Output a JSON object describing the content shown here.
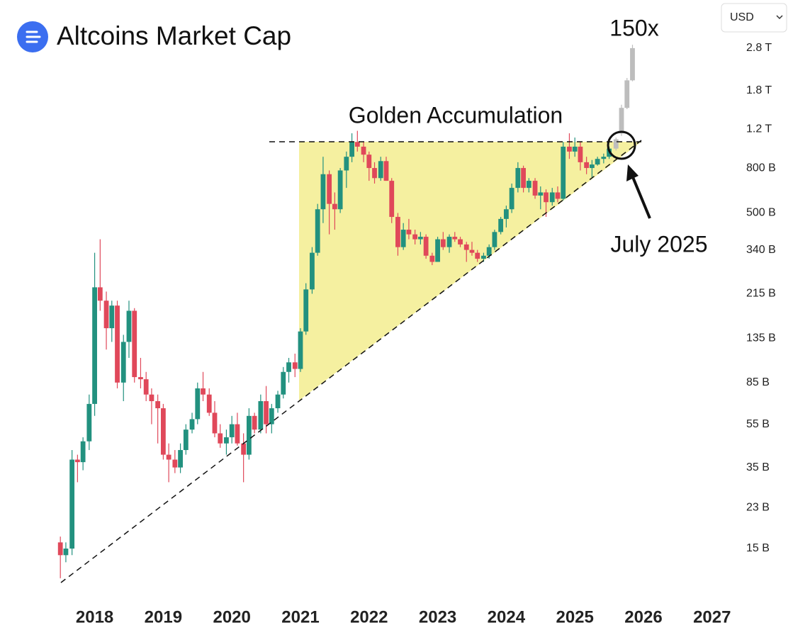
{
  "header": {
    "title": "Altcoins Market Cap",
    "currency": "USD"
  },
  "chart_data": {
    "type": "candlestick",
    "log_scale": true,
    "annotations": {
      "pattern": "Golden Accumulation",
      "date": "July 2025",
      "target": "150x"
    },
    "ylim": [
      9.2,
      4630
    ],
    "xlim": [
      2016.62,
      2028.18
    ],
    "yticks": [
      {
        "value": 15,
        "label": "15 B"
      },
      {
        "value": 23,
        "label": "23 B"
      },
      {
        "value": 35,
        "label": "35 B"
      },
      {
        "value": 55,
        "label": "55 B"
      },
      {
        "value": 85,
        "label": "85 B"
      },
      {
        "value": 135,
        "label": "135 B"
      },
      {
        "value": 215,
        "label": "215 B"
      },
      {
        "value": 340,
        "label": "340 B"
      },
      {
        "value": 500,
        "label": "500 B"
      },
      {
        "value": 800,
        "label": "800 B"
      },
      {
        "value": 1200,
        "label": "1.2 T"
      },
      {
        "value": 1800,
        "label": "1.8 T"
      },
      {
        "value": 2800,
        "label": "2.8 T"
      }
    ],
    "xticks": [
      2018,
      2019,
      2020,
      2021,
      2022,
      2023,
      2024,
      2025,
      2026,
      2027
    ],
    "up_color": "#22917f",
    "down_color": "#e0485a",
    "projection_color": "#bdbdbd",
    "x": [
      2017.5,
      2017.58,
      2017.67,
      2017.75,
      2017.83,
      2017.92,
      2018,
      2018.08,
      2018.17,
      2018.25,
      2018.33,
      2018.42,
      2018.5,
      2018.58,
      2018.67,
      2018.75,
      2018.83,
      2018.92,
      2019,
      2019.08,
      2019.17,
      2019.25,
      2019.33,
      2019.42,
      2019.5,
      2019.58,
      2019.67,
      2019.75,
      2019.83,
      2019.92,
      2020,
      2020.08,
      2020.17,
      2020.25,
      2020.33,
      2020.42,
      2020.5,
      2020.58,
      2020.67,
      2020.75,
      2020.83,
      2020.92,
      2021,
      2021.08,
      2021.17,
      2021.25,
      2021.33,
      2021.42,
      2021.5,
      2021.58,
      2021.67,
      2021.75,
      2021.83,
      2021.92,
      2022,
      2022.08,
      2022.17,
      2022.25,
      2022.33,
      2022.42,
      2022.5,
      2022.58,
      2022.67,
      2022.75,
      2022.83,
      2022.92,
      2023,
      2023.08,
      2023.17,
      2023.25,
      2023.33,
      2023.42,
      2023.5,
      2023.58,
      2023.67,
      2023.75,
      2023.83,
      2023.92,
      2024,
      2024.08,
      2024.17,
      2024.25,
      2024.33,
      2024.42,
      2024.5,
      2024.58,
      2024.67,
      2024.75,
      2024.83,
      2024.92,
      2025,
      2025.08,
      2025.17,
      2025.25,
      2025.33,
      2025.42,
      2025.5
    ],
    "open": [
      16,
      14,
      15,
      38,
      37,
      46,
      68,
      230,
      200,
      150,
      190,
      85,
      130,
      180,
      90,
      88,
      75,
      70,
      65,
      40,
      38,
      35,
      42,
      52,
      58,
      80,
      75,
      62,
      50,
      45,
      48,
      55,
      45,
      40,
      60,
      52,
      70,
      55,
      65,
      75,
      95,
      105,
      98,
      145,
      225,
      330,
      520,
      750,
      550,
      520,
      780,
      900,
      1050,
      1000,
      920,
      800,
      720,
      860,
      700,
      480,
      350,
      420,
      400,
      380,
      390,
      320,
      300,
      380,
      350,
      390,
      380,
      360,
      340,
      330,
      310,
      320,
      350,
      410,
      470,
      520,
      650,
      800,
      650,
      700,
      600,
      620,
      560,
      620,
      580,
      1000,
      950,
      1000,
      850,
      800,
      830,
      880,
      900
    ],
    "high": [
      17,
      16,
      42,
      40,
      48,
      75,
      330,
      380,
      220,
      200,
      200,
      140,
      200,
      185,
      110,
      95,
      80,
      75,
      68,
      45,
      42,
      45,
      55,
      62,
      85,
      95,
      80,
      70,
      55,
      52,
      60,
      62,
      50,
      65,
      62,
      75,
      82,
      68,
      78,
      100,
      110,
      115,
      150,
      240,
      350,
      550,
      900,
      780,
      620,
      800,
      950,
      1150,
      1180,
      1050,
      950,
      850,
      900,
      900,
      720,
      500,
      450,
      470,
      420,
      410,
      400,
      330,
      390,
      410,
      400,
      410,
      390,
      370,
      370,
      340,
      330,
      360,
      420,
      480,
      540,
      680,
      850,
      820,
      720,
      720,
      660,
      640,
      650,
      660,
      1050,
      1150,
      1100,
      1050,
      900,
      870,
      900,
      930,
      1000
    ],
    "low": [
      11,
      13,
      14,
      30,
      34,
      42,
      60,
      180,
      120,
      130,
      80,
      70,
      110,
      85,
      80,
      70,
      55,
      45,
      38,
      30,
      33,
      33,
      40,
      50,
      55,
      70,
      60,
      48,
      43,
      40,
      45,
      44,
      30,
      38,
      50,
      50,
      50,
      50,
      62,
      72,
      85,
      90,
      95,
      140,
      215,
      320,
      450,
      400,
      420,
      500,
      650,
      850,
      950,
      850,
      700,
      680,
      700,
      700,
      450,
      320,
      340,
      380,
      360,
      360,
      310,
      290,
      300,
      340,
      330,
      370,
      350,
      300,
      320,
      300,
      300,
      310,
      340,
      400,
      430,
      500,
      620,
      620,
      620,
      580,
      520,
      480,
      540,
      560,
      570,
      880,
      900,
      780,
      750,
      720,
      820,
      840,
      880
    ],
    "close": [
      14,
      15,
      38,
      37,
      46,
      68,
      230,
      200,
      150,
      190,
      85,
      130,
      180,
      90,
      88,
      75,
      70,
      65,
      40,
      38,
      35,
      42,
      52,
      58,
      80,
      75,
      62,
      50,
      45,
      48,
      55,
      45,
      40,
      60,
      52,
      70,
      55,
      65,
      75,
      95,
      105,
      98,
      145,
      225,
      330,
      520,
      750,
      550,
      520,
      780,
      900,
      1050,
      1000,
      920,
      800,
      720,
      860,
      700,
      480,
      350,
      420,
      400,
      380,
      390,
      320,
      300,
      380,
      350,
      390,
      380,
      360,
      340,
      330,
      310,
      320,
      350,
      410,
      470,
      520,
      650,
      800,
      650,
      700,
      600,
      620,
      560,
      620,
      580,
      1000,
      950,
      1000,
      850,
      800,
      830,
      880,
      900,
      980
    ],
    "projection": {
      "x": [
        2025.6,
        2025.68,
        2025.76,
        2025.84
      ],
      "open": [
        980,
        1150,
        1500,
        2000
      ],
      "high": [
        1100,
        1550,
        2050,
        2900
      ],
      "low": [
        960,
        1120,
        1480,
        1980
      ],
      "close": [
        1080,
        1500,
        2000,
        2800
      ]
    }
  }
}
